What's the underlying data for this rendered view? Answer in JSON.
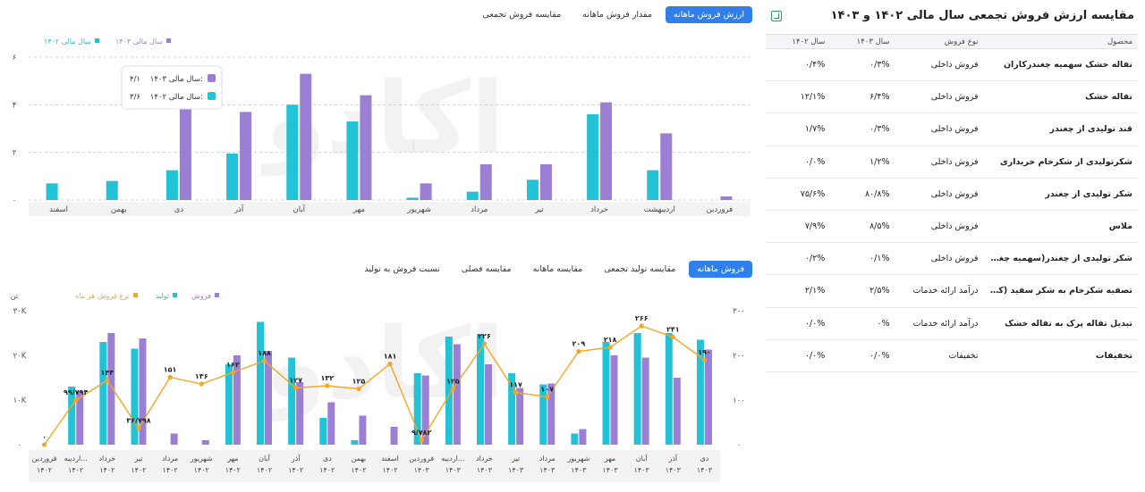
{
  "top_tabs": [
    "ارزش فروش ماهانه",
    "مقدار فروش ماهانه",
    "مقایسه فروش تجمعی"
  ],
  "bottom_tabs": [
    "فروش ماهانه",
    "مقایسه تولید تجمعی",
    "مقایسه ماهانه",
    "مقایسه فصلی",
    "نسبت فروش به تولید"
  ],
  "watermark": "اکادو",
  "table": {
    "title": "مقایسه ارزش فروش تجمعی سال مالی ۱۴۰۲ و ۱۴۰۳",
    "headers": [
      "محصول",
      "نوع فروش",
      "سال ۱۴۰۳",
      "سال ۱۴۰۲"
    ],
    "rows": [
      {
        "product": "تفاله خشک سهمیه چغندرکاران",
        "type": "فروش داخلی",
        "y1403": "۰/۳%",
        "y1402": "۰/۴%"
      },
      {
        "product": "تفاله خشک",
        "type": "فروش داخلی",
        "y1403": "۶/۴%",
        "y1402": "۱۲/۱%"
      },
      {
        "product": "قند تولیدی از چغندر",
        "type": "فروش داخلی",
        "y1403": "۰/۳%",
        "y1402": "۱/۷%"
      },
      {
        "product": "شکرتولیدی از شکرخام خریداری",
        "type": "فروش داخلی",
        "y1403": "۱/۲%",
        "y1402": "۰/۰%"
      },
      {
        "product": "شکر تولیدی از چغندر",
        "type": "فروش داخلی",
        "y1403": "۸۰/۸%",
        "y1402": "۷۵/۶%"
      },
      {
        "product": "ملاس",
        "type": "فروش داخلی",
        "y1403": "۸/۵%",
        "y1402": "۷/۹%"
      },
      {
        "product": "شکر تولیدی از چغندر(سهمیه چغند...",
        "type": "فروش داخلی",
        "y1403": "۰/۱%",
        "y1402": "۰/۲%"
      },
      {
        "product": "تصفیه شکرخام به شکر سفید (کار...",
        "type": "درآمد ارائه خدمات",
        "y1403": "۲/۵%",
        "y1402": "۲/۱%"
      },
      {
        "product": "تبدیل تفاله پرک به تفاله خشک",
        "type": "درآمد ارائه خدمات",
        "y1403": "۰%",
        "y1402": "۰/۰%"
      },
      {
        "product": "تخفیفات",
        "type": "تخفیفات",
        "y1403": "۰/۰%",
        "y1402": "۰/۰%"
      }
    ]
  },
  "colors": {
    "purple": "#9b7fd4",
    "teal": "#22c3d6",
    "orange": "#f5a623",
    "accent": "#2f80ed",
    "plot_band": "#f3f3f3"
  },
  "tooltip": {
    "rows": [
      {
        "label": "سال مالی ۱۴۰۳:",
        "value": "۴/۱",
        "color": "#9b7fd4"
      },
      {
        "label": "سال مالی ۱۴۰۲:",
        "value": "۳/۶",
        "color": "#22c3d6"
      }
    ]
  },
  "chart_data": [
    {
      "type": "bar",
      "legend": [
        "سال مالی ۱۴۰۳",
        "سال مالی ۱۴۰۲"
      ],
      "categories": [
        "فروردین",
        "اردیبهشت",
        "خرداد",
        "تیر",
        "مرداد",
        "شهریور",
        "مهر",
        "آبان",
        "آذر",
        "دی",
        "بهمن",
        "اسفند"
      ],
      "y_ticks": [
        "۰",
        "۲",
        "۴",
        "۶"
      ],
      "ylim": [
        0,
        6
      ],
      "series": [
        {
          "name": "سال مالی ۱۴۰۳",
          "color": "#9b7fd4",
          "values": [
            0.15,
            2.8,
            4.1,
            1.5,
            1.5,
            0.7,
            4.4,
            5.3,
            3.7,
            4.1,
            0,
            0
          ]
        },
        {
          "name": "سال مالی ۱۴۰۲",
          "color": "#22c3d6",
          "values": [
            0,
            1.25,
            3.6,
            0.85,
            0.35,
            0.1,
            3.3,
            4.0,
            1.95,
            1.25,
            0.8,
            0.7
          ]
        }
      ]
    },
    {
      "type": "bar+line",
      "legend": [
        "فروش",
        "تولید",
        "نرخ فروش هر ماه"
      ],
      "y_left_label": "تن",
      "y_left_ticks": [
        "۰",
        "۱۰K",
        "۲۰K",
        "۳۰K"
      ],
      "y_right_ticks": [
        "۰",
        "۱۰۰",
        "۲۰۰",
        "۳۰۰"
      ],
      "ylim_left": [
        0,
        30000
      ],
      "ylim_right": [
        0,
        300
      ],
      "categories": [
        [
          "فروردین",
          "۱۴۰۲"
        ],
        [
          "اردیبه...",
          "۱۴۰۲"
        ],
        [
          "خرداد",
          "۱۴۰۲"
        ],
        [
          "تیر",
          "۱۴۰۲"
        ],
        [
          "مرداد",
          "۱۴۰۲"
        ],
        [
          "شهریور",
          "۱۴۰۲"
        ],
        [
          "مهر",
          "۱۴۰۲"
        ],
        [
          "آبان",
          "۱۴۰۲"
        ],
        [
          "آذر",
          "۱۴۰۲"
        ],
        [
          "دی",
          "۱۴۰۲"
        ],
        [
          "بهمن",
          "۱۴۰۲"
        ],
        [
          "اسفند",
          "۱۴۰۲"
        ],
        [
          "فروردین",
          "۱۴۰۳"
        ],
        [
          "اردیبه...",
          "۱۴۰۳"
        ],
        [
          "خرداد",
          "۱۴۰۳"
        ],
        [
          "تیر",
          "۱۴۰۳"
        ],
        [
          "مرداد",
          "۱۴۰۳"
        ],
        [
          "شهریور",
          "۱۴۰۳"
        ],
        [
          "مهر",
          "۱۴۰۳"
        ],
        [
          "آبان",
          "۱۴۰۳"
        ],
        [
          "آذر",
          "۱۴۰۳"
        ],
        [
          "دی",
          "۱۴۰۳"
        ]
      ],
      "series": [
        {
          "name": "تولید",
          "color": "#22c3d6",
          "values": [
            0,
            13000,
            23000,
            21500,
            0,
            0,
            18000,
            27500,
            19500,
            6000,
            1000,
            0,
            16000,
            24200,
            24700,
            16000,
            13500,
            2500,
            23000,
            25000,
            25000,
            23500
          ]
        },
        {
          "name": "فروش",
          "color": "#9b7fd4",
          "values": [
            0,
            12000,
            25000,
            23800,
            2500,
            1000,
            20000,
            21000,
            14000,
            9500,
            6500,
            4000,
            15500,
            22500,
            18000,
            12700,
            13700,
            3500,
            20000,
            19500,
            15000,
            21300
          ]
        },
        {
          "name": "نرخ فروش هر ماه",
          "color": "#f5a623",
          "values": [
            0,
            99.794,
            144,
            36.798,
            151,
            136,
            162,
            188,
            127,
            132,
            125,
            181,
            9.782,
            125,
            226,
            117,
            107,
            209,
            218,
            266,
            241,
            190
          ]
        }
      ],
      "line_labels": [
        "۰",
        "۹۹/۷۹۴",
        "۱۴۴",
        "۳۶/۷۹۸",
        "۱۵۱",
        "۱۳۶",
        "۱۶۲",
        "۱۸۸",
        "۱۲۷",
        "۱۳۲",
        "۱۲۵",
        "۱۸۱",
        "۹/۷۸۲",
        "۱۲۵",
        "۲۲۶",
        "۱۱۷",
        "۱۰۷",
        "۲۰۹",
        "۲۱۸",
        "۲۶۶",
        "۲۴۱",
        "۱۹۰"
      ]
    }
  ]
}
